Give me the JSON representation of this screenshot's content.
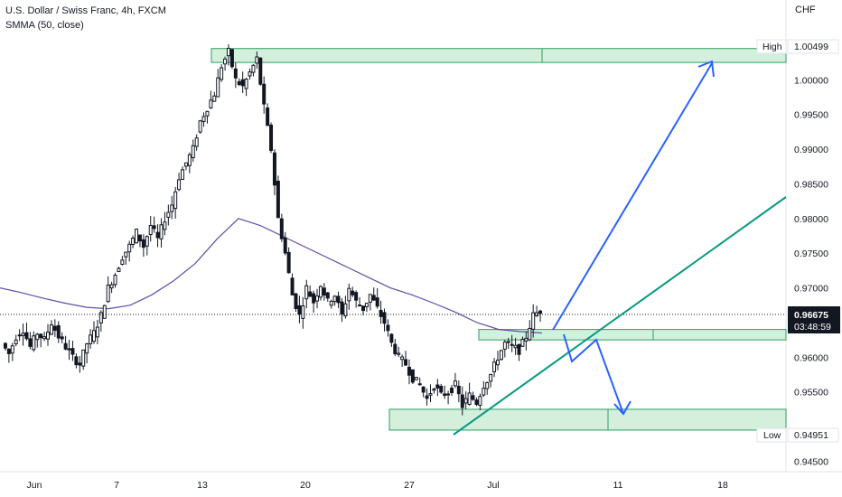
{
  "header": {
    "title": "U.S. Dollar / Swiss Franc, 4h, FXCM",
    "indicator": "SMMA (50, close)"
  },
  "price_axis": {
    "currency": "CHF",
    "ticks": [
      "1.00000",
      "0.99500",
      "0.99000",
      "0.98500",
      "0.98000",
      "0.97500",
      "0.97000",
      "0.96000",
      "0.95500",
      "0.94500"
    ],
    "high_label": "High",
    "high_value": "1.00499",
    "low_label": "Low",
    "low_value": "0.94951",
    "last_price": "0.96675",
    "countdown": "03:48:59"
  },
  "time_axis": {
    "ticks": [
      "Jun",
      "7",
      "13",
      "20",
      "27",
      "Jul",
      "11",
      "18"
    ]
  },
  "colors": {
    "bull": "#089981",
    "bear": "#131722",
    "candle_fill_up": "#ffffff",
    "smma": "#5b4ea8",
    "zone_fill": "#d4f0dc",
    "zone_stroke": "#2e9e5f",
    "trendline": "#089981",
    "arrow": "#2962ff",
    "last_price_bg": "#131722"
  },
  "chart_data": {
    "type": "candlestick",
    "symbol": "USDCHF",
    "timeframe": "4h",
    "ylim": [
      0.9435,
      1.0115
    ],
    "price_points": [
      0.962,
      0.9605,
      0.963,
      0.964,
      0.9615,
      0.9635,
      0.9625,
      0.965,
      0.963,
      0.9615,
      0.96,
      0.959,
      0.962,
      0.9635,
      0.966,
      0.97,
      0.972,
      0.9745,
      0.976,
      0.978,
      0.976,
      0.979,
      0.977,
      0.98,
      0.982,
      0.986,
      0.988,
      0.99,
      0.994,
      0.996,
      0.998,
      1.002,
      1.004,
      1.0,
      0.999,
      1.001,
      1.003,
      0.996,
      0.99,
      0.98,
      0.975,
      0.969,
      0.966,
      0.97,
      0.968,
      0.9705,
      0.968,
      0.969,
      0.966,
      0.97,
      0.968,
      0.967,
      0.969,
      0.967,
      0.965,
      0.962,
      0.96,
      0.959,
      0.957,
      0.956,
      0.954,
      0.956,
      0.9545,
      0.955,
      0.956,
      0.953,
      0.9545,
      0.9535,
      0.956,
      0.9575,
      0.96,
      0.962,
      0.9615,
      0.961,
      0.963,
      0.966,
      0.96675
    ],
    "smma_points": [
      0.97,
      0.9693,
      0.9685,
      0.9678,
      0.9672,
      0.967,
      0.9675,
      0.969,
      0.971,
      0.9735,
      0.977,
      0.98,
      0.979,
      0.9775,
      0.976,
      0.9745,
      0.973,
      0.9715,
      0.97,
      0.969,
      0.9678,
      0.9665,
      0.965,
      0.964,
      0.9637,
      0.9635
    ],
    "zones": [
      {
        "name": "high-zone",
        "from": 1.0025,
        "to": 1.0045
      },
      {
        "name": "mid-zone",
        "from": 0.9625,
        "to": 0.964
      },
      {
        "name": "low-zone",
        "from": 0.9495,
        "to": 0.9525
      }
    ],
    "levels": {
      "high": 1.00499,
      "low": 0.94951,
      "last": 0.96675
    }
  }
}
